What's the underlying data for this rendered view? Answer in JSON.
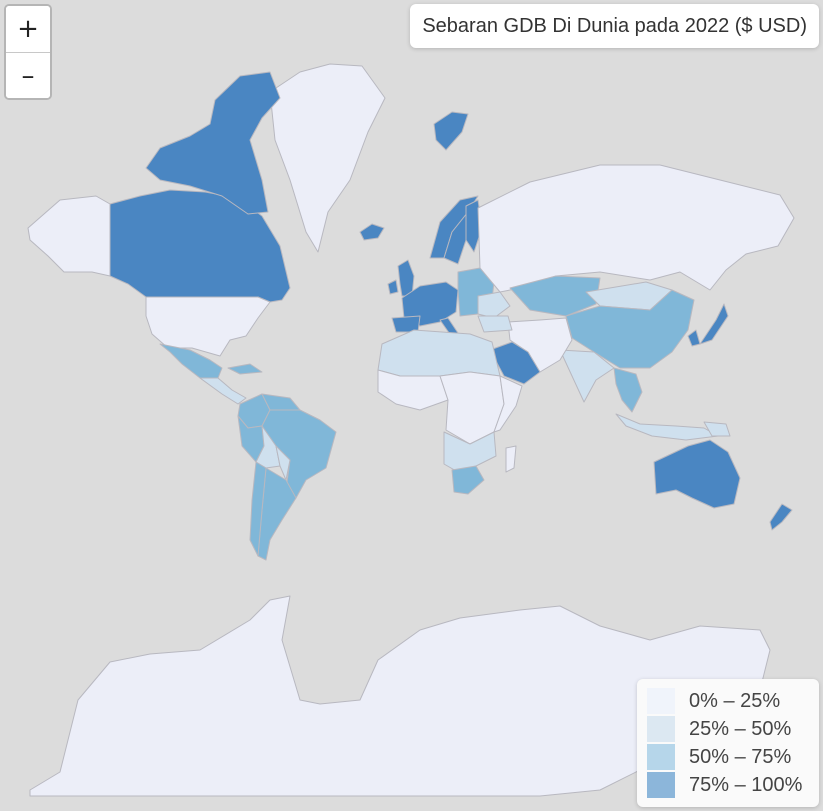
{
  "title": "Sebaran GDB Di Dunia pada 2022 ($ USD)",
  "zoom": {
    "in_label": "+",
    "out_label": "–"
  },
  "legend": [
    {
      "label": "0% – 25%",
      "color": "#f0f4fb"
    },
    {
      "label": "25% – 50%",
      "color": "#dce8f2"
    },
    {
      "label": "50% – 75%",
      "color": "#b6d6ea"
    },
    {
      "label": "75% – 100%",
      "color": "#8cb6da"
    }
  ],
  "map_colors": {
    "ocean": "#dcdcdc",
    "class_0": "#eceef8",
    "class_1": "#cfe0ee",
    "class_2": "#80b7d8",
    "class_3": "#4a86c2"
  },
  "regions": [
    {
      "name": "Greenland",
      "class": 0
    },
    {
      "name": "Canada",
      "class": 3
    },
    {
      "name": "Canadian Arctic Archipelago",
      "class": 3
    },
    {
      "name": "Alaska",
      "class": 0
    },
    {
      "name": "United States",
      "class": 0
    },
    {
      "name": "Mexico",
      "class": 2
    },
    {
      "name": "Central America",
      "class": 1
    },
    {
      "name": "Cuba",
      "class": 2
    },
    {
      "name": "Colombia",
      "class": 2
    },
    {
      "name": "Venezuela",
      "class": 2
    },
    {
      "name": "Brazil",
      "class": 2
    },
    {
      "name": "Peru",
      "class": 2
    },
    {
      "name": "Bolivia",
      "class": 1
    },
    {
      "name": "Paraguay",
      "class": 1
    },
    {
      "name": "Argentina",
      "class": 2
    },
    {
      "name": "Chile",
      "class": 2
    },
    {
      "name": "Iceland",
      "class": 3
    },
    {
      "name": "Svalbard",
      "class": 3
    },
    {
      "name": "Ireland",
      "class": 3
    },
    {
      "name": "United Kingdom",
      "class": 3
    },
    {
      "name": "Norway",
      "class": 3
    },
    {
      "name": "Sweden",
      "class": 3
    },
    {
      "name": "Finland",
      "class": 3
    },
    {
      "name": "Western Europe",
      "class": 3
    },
    {
      "name": "Spain",
      "class": 3
    },
    {
      "name": "Italy",
      "class": 3
    },
    {
      "name": "Eastern Europe",
      "class": 2
    },
    {
      "name": "Ukraine",
      "class": 1
    },
    {
      "name": "Russia",
      "class": 0
    },
    {
      "name": "Kazakhstan",
      "class": 2
    },
    {
      "name": "Mongolia",
      "class": 1
    },
    {
      "name": "China",
      "class": 2
    },
    {
      "name": "Japan",
      "class": 3
    },
    {
      "name": "South Korea",
      "class": 3
    },
    {
      "name": "India",
      "class": 1
    },
    {
      "name": "Middle East",
      "class": 0
    },
    {
      "name": "Saudi Arabia",
      "class": 3
    },
    {
      "name": "Turkey",
      "class": 1
    },
    {
      "name": "Southeast Asia",
      "class": 2
    },
    {
      "name": "Indonesia",
      "class": 1
    },
    {
      "name": "Papua New Guinea",
      "class": 1
    },
    {
      "name": "Australia",
      "class": 3
    },
    {
      "name": "New Zealand",
      "class": 3
    },
    {
      "name": "North Africa",
      "class": 1
    },
    {
      "name": "West Africa",
      "class": 0
    },
    {
      "name": "Central Africa",
      "class": 0
    },
    {
      "name": "East Africa",
      "class": 0
    },
    {
      "name": "Southern Africa",
      "class": 1
    },
    {
      "name": "South Africa",
      "class": 2
    },
    {
      "name": "Madagascar",
      "class": 0
    },
    {
      "name": "Antarctica",
      "class": 0
    }
  ]
}
